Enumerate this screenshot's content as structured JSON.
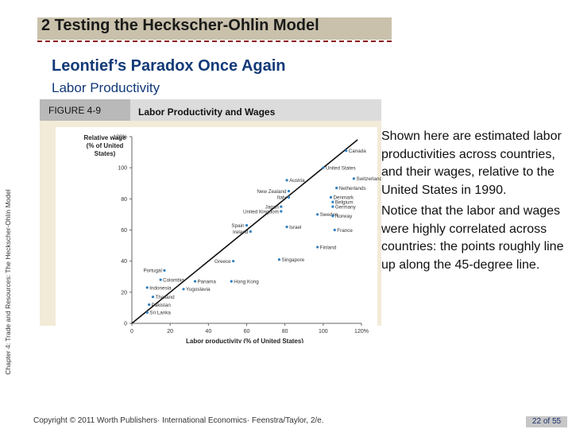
{
  "side_label": "Chapter 4: Trade and Resources: The Heckscher-Ohlin Model",
  "title": "2 Testing the Heckscher-Ohlin Model",
  "subtitle": "Leontief’s Paradox Once Again",
  "subsubtitle": "Labor Productivity",
  "figure": {
    "label": "FIGURE 4-9",
    "title": "Labor Productivity and Wages"
  },
  "side_text": {
    "p1": "Shown here are estimated labor productivities across countries, and their wages, relative to the United States in 1990.",
    "p2": "Notice that the labor and wages were highly correlated across countries: the points roughly line up along the 45-degree line."
  },
  "copyright": "Copyright © 2011 Worth Publishers· International Economics· Feenstra/Taylor, 2/e.",
  "page_number": "22 of 55",
  "chart_data": {
    "type": "scatter",
    "xlabel": "Labor productivity (% of United States)",
    "ylabel": "Relative wage (% of United States)",
    "xlim": [
      0,
      120
    ],
    "ylim": [
      0,
      120
    ],
    "x_ticks": [
      "0",
      "20",
      "40",
      "60",
      "80",
      "100",
      "120%"
    ],
    "y_ticks": [
      "0",
      "20",
      "40",
      "60",
      "80",
      "100",
      "120%"
    ],
    "reference_line": "45-degree",
    "points": [
      {
        "label": "Canada",
        "x": 112,
        "y": 111
      },
      {
        "label": "United States",
        "x": 100,
        "y": 100
      },
      {
        "label": "Switzerland",
        "x": 116,
        "y": 93
      },
      {
        "label": "Austria",
        "x": 81,
        "y": 92
      },
      {
        "label": "Netherlands",
        "x": 107,
        "y": 87
      },
      {
        "label": "New Zealand",
        "x": 82,
        "y": 85
      },
      {
        "label": "Italy",
        "x": 82,
        "y": 81
      },
      {
        "label": "Denmark",
        "x": 104,
        "y": 81
      },
      {
        "label": "Belgium",
        "x": 105,
        "y": 78
      },
      {
        "label": "Japan",
        "x": 78,
        "y": 75
      },
      {
        "label": "Germany",
        "x": 105,
        "y": 75
      },
      {
        "label": "United Kingdom",
        "x": 78,
        "y": 72
      },
      {
        "label": "Sweden",
        "x": 97,
        "y": 70
      },
      {
        "label": "Norway",
        "x": 105,
        "y": 69
      },
      {
        "label": "Spain",
        "x": 60,
        "y": 63
      },
      {
        "label": "Ireland",
        "x": 62,
        "y": 59
      },
      {
        "label": "Israel",
        "x": 81,
        "y": 62
      },
      {
        "label": "France",
        "x": 106,
        "y": 60
      },
      {
        "label": "Finland",
        "x": 97,
        "y": 49
      },
      {
        "label": "Greece",
        "x": 53,
        "y": 40
      },
      {
        "label": "Singapore",
        "x": 77,
        "y": 41
      },
      {
        "label": "Portugal",
        "x": 17,
        "y": 34
      },
      {
        "label": "Colombia",
        "x": 15,
        "y": 28
      },
      {
        "label": "Panama",
        "x": 33,
        "y": 27
      },
      {
        "label": "Hong Kong",
        "x": 52,
        "y": 27
      },
      {
        "label": "Indonesia",
        "x": 8,
        "y": 23
      },
      {
        "label": "Yugoslavia",
        "x": 27,
        "y": 22
      },
      {
        "label": "Thailand",
        "x": 11,
        "y": 17
      },
      {
        "label": "Pakistan",
        "x": 9,
        "y": 12
      },
      {
        "label": "Sri Lanka",
        "x": 8,
        "y": 7
      }
    ]
  }
}
